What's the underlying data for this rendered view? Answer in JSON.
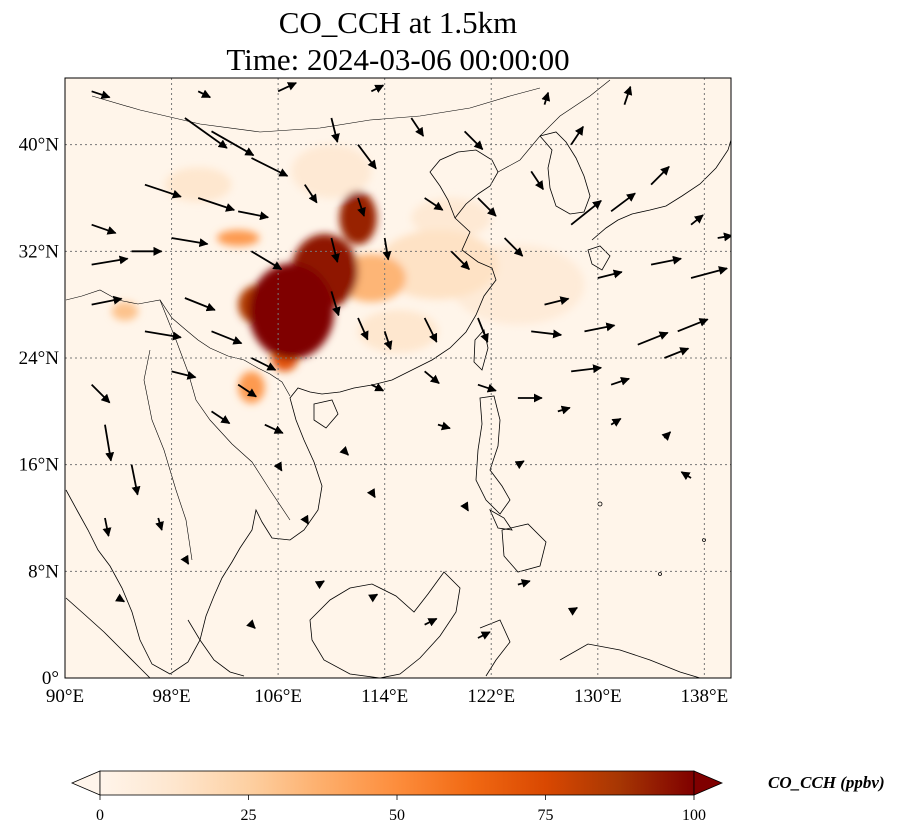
{
  "title": {
    "line1": "CO_CCH at 1.5km",
    "line2": "Time: 2024-03-06 00:00:00"
  },
  "map": {
    "extent": {
      "lon_min": 90,
      "lon_max": 140,
      "lat_min": 0,
      "lat_max": 45
    },
    "lon_ticks": [
      {
        "value": 90,
        "label": "90°E"
      },
      {
        "value": 98,
        "label": "98°E"
      },
      {
        "value": 106,
        "label": "106°E"
      },
      {
        "value": 114,
        "label": "114°E"
      },
      {
        "value": 122,
        "label": "122°E"
      },
      {
        "value": 130,
        "label": "130°E"
      },
      {
        "value": 138,
        "label": "138°E"
      }
    ],
    "lat_ticks": [
      {
        "value": 0,
        "label": "0°"
      },
      {
        "value": 8,
        "label": "8°N"
      },
      {
        "value": 16,
        "label": "16°N"
      },
      {
        "value": 24,
        "label": "24°N"
      },
      {
        "value": 32,
        "label": "32°N"
      },
      {
        "value": 40,
        "label": "40°N"
      }
    ],
    "gridlines": true,
    "background_color": "#fff5ea",
    "plume": [
      {
        "lon": 107,
        "lat": 27.5,
        "rlon": 3.2,
        "rlat": 3.6,
        "value": 100
      },
      {
        "lon": 109.5,
        "lat": 30.5,
        "rlon": 2.5,
        "rlat": 2.8,
        "value": 95
      },
      {
        "lon": 112,
        "lat": 34.5,
        "rlon": 1.4,
        "rlat": 2.0,
        "value": 92
      },
      {
        "lon": 104.5,
        "lat": 28,
        "rlon": 1.5,
        "rlat": 1.5,
        "value": 85
      },
      {
        "lon": 106.5,
        "lat": 24,
        "rlon": 1.0,
        "rlat": 1.0,
        "value": 70
      },
      {
        "lon": 104,
        "lat": 21.8,
        "rlon": 1.0,
        "rlat": 1.2,
        "value": 45
      },
      {
        "lon": 103,
        "lat": 33,
        "rlon": 1.6,
        "rlat": 0.6,
        "value": 45
      },
      {
        "lon": 113,
        "lat": 30,
        "rlon": 2.6,
        "rlat": 1.8,
        "value": 35
      },
      {
        "lon": 118,
        "lat": 31,
        "rlon": 4.5,
        "rlat": 2.6,
        "value": 15
      },
      {
        "lon": 124,
        "lat": 29.5,
        "rlon": 5,
        "rlat": 3.0,
        "value": 8
      },
      {
        "lon": 110,
        "lat": 38,
        "rlon": 3,
        "rlat": 2,
        "value": 10
      },
      {
        "lon": 94.5,
        "lat": 27.5,
        "rlon": 1.0,
        "rlat": 0.7,
        "value": 30
      },
      {
        "lon": 100,
        "lat": 37,
        "rlon": 2.5,
        "rlat": 1.3,
        "value": 12
      },
      {
        "lon": 115,
        "lat": 26,
        "rlon": 3,
        "rlat": 1.6,
        "value": 12
      },
      {
        "lon": 119,
        "lat": 34.5,
        "rlon": 3,
        "rlat": 1.5,
        "value": 10
      }
    ],
    "wind_vectors": [
      [
        92,
        44,
        1.5,
        -0.5
      ],
      [
        99,
        42,
        3.5,
        -2.5
      ],
      [
        101,
        41,
        3.5,
        -2
      ],
      [
        104,
        39,
        3,
        -1.5
      ],
      [
        100,
        36,
        3,
        -1
      ],
      [
        103,
        35,
        2.5,
        -0.5
      ],
      [
        96,
        37,
        3,
        -1
      ],
      [
        92,
        34,
        2,
        -0.7
      ],
      [
        98,
        33,
        3,
        -0.5
      ],
      [
        104,
        32,
        2.5,
        -1.5
      ],
      [
        92,
        31,
        3,
        0.5
      ],
      [
        95,
        32,
        2.5,
        0
      ],
      [
        99,
        28.5,
        2.5,
        -1
      ],
      [
        92,
        28,
        2.5,
        0.5
      ],
      [
        96,
        26,
        3,
        -0.5
      ],
      [
        101,
        26,
        2.5,
        -1
      ],
      [
        104,
        24,
        2,
        -1
      ],
      [
        98,
        23,
        2,
        -0.5
      ],
      [
        92,
        22,
        1.5,
        -1.5
      ],
      [
        93,
        19,
        0.5,
        -3
      ],
      [
        95,
        16,
        0.5,
        -2.5
      ],
      [
        93,
        12,
        0.3,
        -1.5
      ],
      [
        97,
        12,
        0.3,
        -1
      ],
      [
        103,
        22,
        1.5,
        -1
      ],
      [
        101,
        20,
        1.5,
        -1
      ],
      [
        105,
        19,
        1.5,
        -0.7
      ],
      [
        110,
        42,
        0.5,
        -2
      ],
      [
        112,
        40,
        1.5,
        -2
      ],
      [
        116,
        42,
        1,
        -1.5
      ],
      [
        120,
        41,
        1.5,
        -1.5
      ],
      [
        108,
        37,
        1,
        -1.5
      ],
      [
        112,
        36,
        0.5,
        -1.5
      ],
      [
        110,
        33,
        0.5,
        -2
      ],
      [
        114,
        33,
        0.3,
        -1.8
      ],
      [
        117,
        36,
        1.5,
        -1
      ],
      [
        121,
        36,
        1.5,
        -1.5
      ],
      [
        125,
        38,
        1,
        -1.5
      ],
      [
        119,
        32,
        1.5,
        -1.5
      ],
      [
        123,
        33,
        1.5,
        -1.5
      ],
      [
        110,
        29,
        0.6,
        -2
      ],
      [
        112,
        27,
        0.8,
        -1.8
      ],
      [
        114,
        26,
        0.5,
        -1.5
      ],
      [
        117,
        27,
        1,
        -2
      ],
      [
        121,
        27,
        0.8,
        -2
      ],
      [
        125,
        26,
        2.5,
        -0.3
      ],
      [
        117,
        23,
        1.2,
        -1
      ],
      [
        121,
        22,
        1.5,
        -0.5
      ],
      [
        124,
        21,
        2,
        0
      ],
      [
        113,
        22,
        1,
        -0.5
      ],
      [
        118,
        19,
        1,
        -0.3
      ],
      [
        126,
        28,
        2,
        0.5
      ],
      [
        129,
        26,
        2.5,
        0.5
      ],
      [
        133,
        25,
        2.5,
        1
      ],
      [
        136,
        26,
        2.5,
        1
      ],
      [
        130,
        30,
        2,
        0.5
      ],
      [
        134,
        31,
        2.5,
        0.5
      ],
      [
        137,
        30,
        3,
        0.8
      ],
      [
        128,
        23,
        2.5,
        0.3
      ],
      [
        131,
        22,
        1.5,
        0.5
      ],
      [
        135,
        24,
        2,
        0.8
      ],
      [
        128,
        34,
        2.5,
        2
      ],
      [
        131,
        35,
        2,
        1.5
      ],
      [
        134,
        37,
        1.5,
        1.5
      ],
      [
        137,
        34,
        1,
        0.8
      ],
      [
        128,
        40,
        1,
        1.5
      ],
      [
        132,
        43,
        0.5,
        1.5
      ],
      [
        127,
        20,
        1,
        0.3
      ],
      [
        131,
        19,
        0.8,
        0.5
      ],
      [
        135,
        18,
        0.5,
        0.5
      ],
      [
        137,
        15,
        -0.8,
        0.5
      ],
      [
        124,
        16,
        0.5,
        0.3
      ],
      [
        120,
        13,
        0.3,
        -0.5
      ],
      [
        113,
        14,
        0.3,
        -0.5
      ],
      [
        108,
        12,
        0.3,
        -0.5
      ],
      [
        106,
        16,
        0.3,
        -0.5
      ],
      [
        111,
        17,
        0.3,
        -0.3
      ],
      [
        109,
        7,
        0.5,
        0.3
      ],
      [
        113,
        6,
        0.5,
        0.3
      ],
      [
        117,
        4,
        1,
        0.5
      ],
      [
        121,
        3,
        1,
        0.5
      ],
      [
        124,
        7,
        1,
        0.3
      ],
      [
        128,
        5,
        0.5,
        0.3
      ],
      [
        99,
        9,
        0.3,
        -0.5
      ],
      [
        94,
        6,
        0.5,
        -0.3
      ],
      [
        104,
        4,
        0.3,
        -0.3
      ],
      [
        139,
        33,
        1.2,
        0.2
      ],
      [
        126,
        43,
        0.3,
        1
      ],
      [
        113,
        44,
        1,
        0.5
      ],
      [
        106,
        44,
        1.5,
        0.7
      ],
      [
        100,
        44,
        1,
        -0.5
      ]
    ]
  },
  "colorbar": {
    "min": 0,
    "max": 100,
    "ticks": [
      {
        "value": 0,
        "label": "0"
      },
      {
        "value": 25,
        "label": "25"
      },
      {
        "value": 50,
        "label": "50"
      },
      {
        "value": 75,
        "label": "75"
      },
      {
        "value": 100,
        "label": "100"
      }
    ],
    "label": "CO_CCH (ppbv)",
    "colors": [
      "#fff5eb",
      "#fee6ce",
      "#fdd0a2",
      "#fdae6b",
      "#fd8d3c",
      "#f16913",
      "#d94801",
      "#a63603",
      "#7f0000"
    ]
  }
}
